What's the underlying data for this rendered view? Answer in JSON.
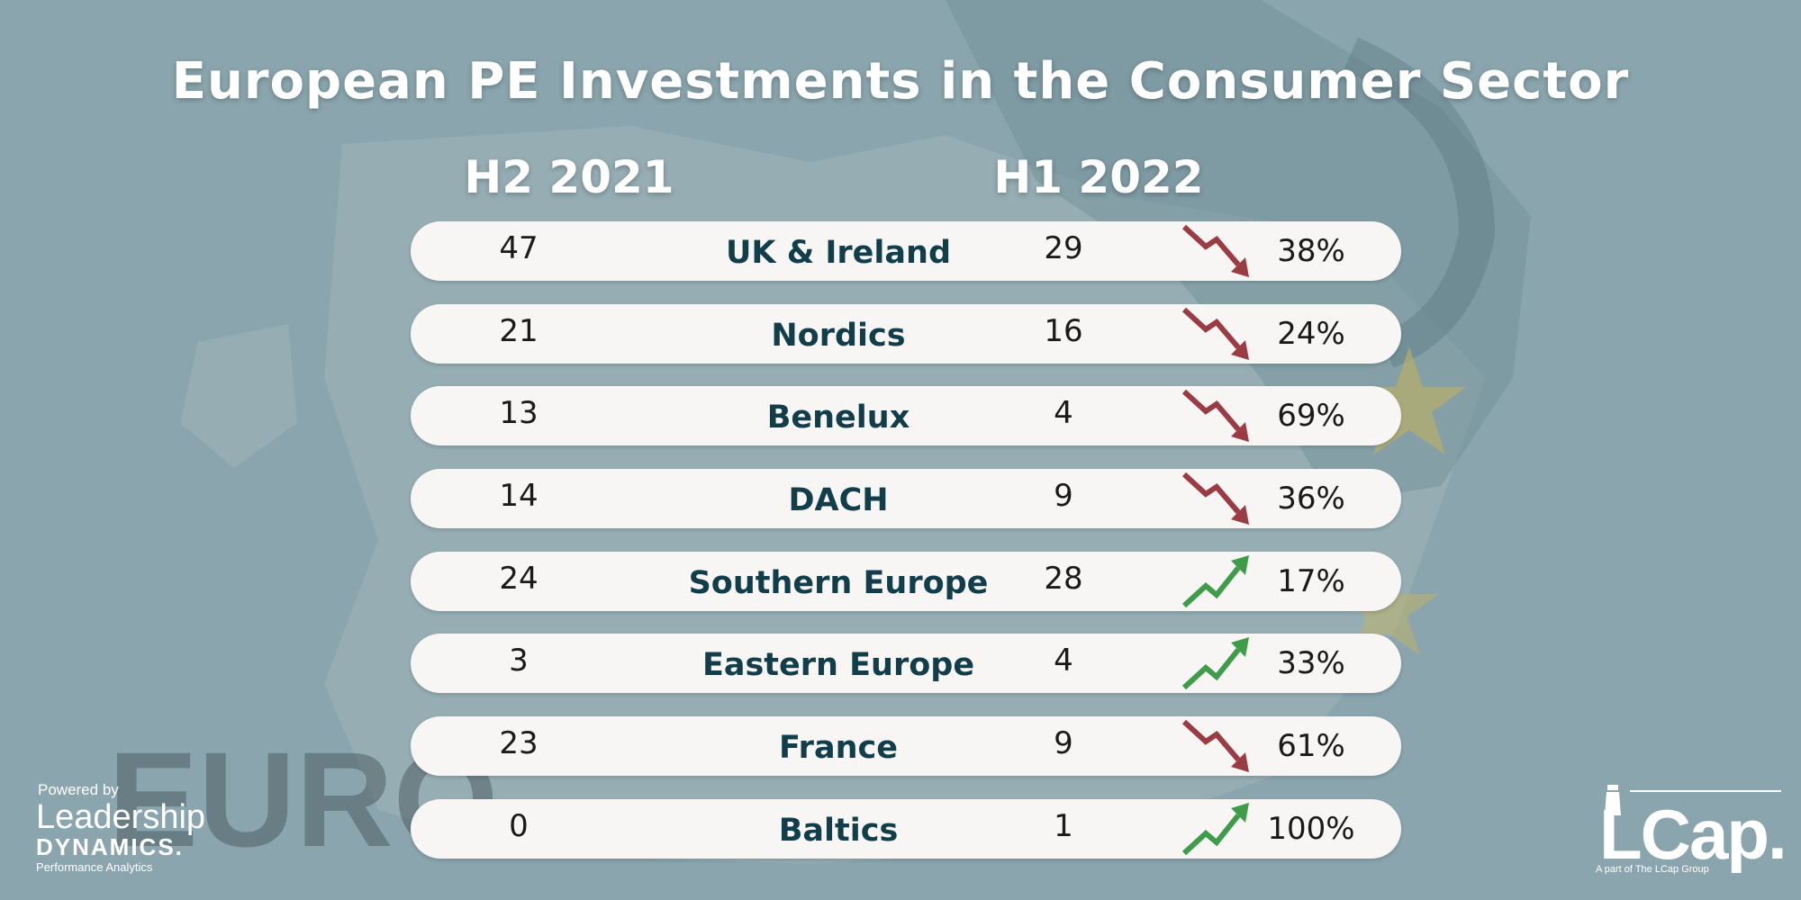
{
  "chart_data": {
    "type": "table",
    "title": "European PE Investments in the Consumer Sector",
    "columns": [
      "H2 2021",
      "H1 2022"
    ],
    "rows": [
      {
        "region": "UK & Ireland",
        "h2_2021": 47,
        "h1_2022": 29,
        "change": "38%",
        "trend": "down"
      },
      {
        "region": "Nordics",
        "h2_2021": 21,
        "h1_2022": 16,
        "change": "24%",
        "trend": "down"
      },
      {
        "region": "Benelux",
        "h2_2021": 13,
        "h1_2022": 4,
        "change": "69%",
        "trend": "down"
      },
      {
        "region": "DACH",
        "h2_2021": 14,
        "h1_2022": 9,
        "change": "36%",
        "trend": "down"
      },
      {
        "region": "Southern Europe",
        "h2_2021": 24,
        "h1_2022": 28,
        "change": "17%",
        "trend": "up"
      },
      {
        "region": "Eastern Europe",
        "h2_2021": 3,
        "h1_2022": 4,
        "change": "33%",
        "trend": "up"
      },
      {
        "region": "France",
        "h2_2021": 23,
        "h1_2022": 9,
        "change": "61%",
        "trend": "down"
      },
      {
        "region": "Baltics",
        "h2_2021": 0,
        "h1_2022": 1,
        "change": "100%",
        "trend": "up"
      }
    ]
  },
  "colors": {
    "background": "#8aa5ad",
    "row_fill": "#f8f6f4",
    "region_text": "#123d4a",
    "down_arrow": "#9b3b44",
    "up_arrow": "#3f9c49"
  },
  "branding": {
    "left_powered_by": "Powered by",
    "left_name": "Leadership",
    "left_name_2": "DYNAMICS.",
    "left_tagline": "Performance Analytics",
    "right_logo": "LCap.",
    "right_tagline": "A part of The LCap Group"
  }
}
